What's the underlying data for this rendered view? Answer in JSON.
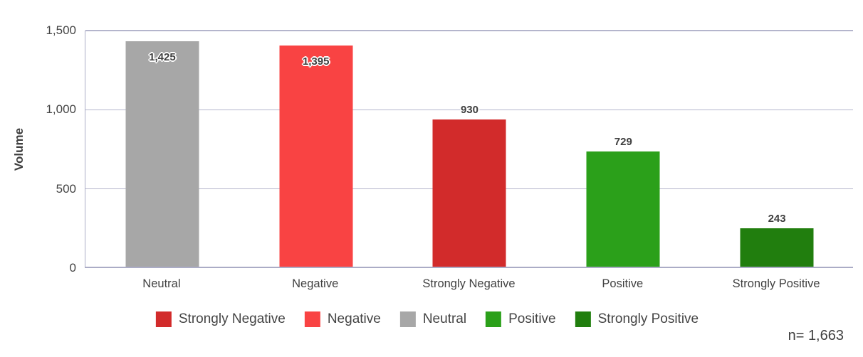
{
  "chart_data": {
    "type": "bar",
    "title": "",
    "xlabel": "",
    "ylabel": "Volume",
    "ylim": [
      0,
      1500
    ],
    "grid": true,
    "legend_position": "bottom",
    "yticks": [
      {
        "value": 0,
        "label": "0"
      },
      {
        "value": 500,
        "label": "500"
      },
      {
        "value": 1000,
        "label": "1,000"
      },
      {
        "value": 1500,
        "label": "1,500"
      }
    ],
    "categories": [
      "Neutral",
      "Negative",
      "Strongly Negative",
      "Positive",
      "Strongly Positive"
    ],
    "values": [
      1425,
      1395,
      930,
      729,
      243
    ],
    "value_labels": [
      "1,425",
      "1,395",
      "930",
      "729",
      "243"
    ],
    "bar_colors": [
      "#a7a7a7",
      "#f94343",
      "#d22b2b",
      "#2ba01a",
      "#217e0e"
    ],
    "legend": [
      {
        "label": "Strongly Negative",
        "color": "#d22b2b"
      },
      {
        "label": "Negative",
        "color": "#f94343"
      },
      {
        "label": "Neutral",
        "color": "#a7a7a7"
      },
      {
        "label": "Positive",
        "color": "#2ba01a"
      },
      {
        "label": "Strongly Positive",
        "color": "#217e0e"
      }
    ],
    "sample_size_label": "n= 1,663"
  },
  "colors": {
    "gridline": "#b4b5cc",
    "axis": "#abacc6",
    "text": "#444444"
  }
}
